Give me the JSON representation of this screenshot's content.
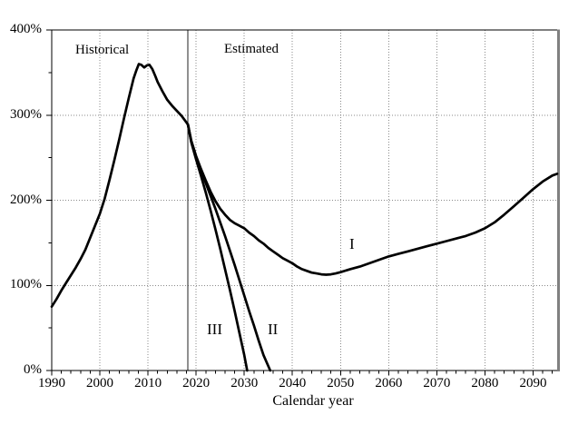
{
  "labels": {
    "historical": "Historical",
    "estimated": "Estimated",
    "series_i": "I",
    "series_ii": "II",
    "series_iii": "III",
    "x_axis_title": "Calendar year"
  },
  "chart_data": {
    "type": "line",
    "title": "",
    "xlabel": "Calendar year",
    "ylabel": "",
    "x_range": [
      1990,
      2095
    ],
    "y_range": [
      0,
      400
    ],
    "x_major_ticks": [
      1990,
      2000,
      2010,
      2020,
      2030,
      2040,
      2050,
      2060,
      2070,
      2080,
      2090
    ],
    "x_tick_labels": [
      "1990",
      "2000",
      "2010",
      "2020",
      "2030",
      "2040",
      "2050",
      "2060",
      "2070",
      "2080",
      "2090"
    ],
    "x_minor_step": 2,
    "y_major_ticks": [
      0,
      100,
      200,
      300,
      400
    ],
    "y_tick_labels": [
      "0%",
      "100%",
      "200%",
      "300%",
      "400%"
    ],
    "y_minor_step": 50,
    "x_grid": [
      2000,
      2010,
      2020,
      2030,
      2040,
      2050,
      2060,
      2070,
      2080,
      2090
    ],
    "y_grid": [
      100,
      200,
      300
    ],
    "grid_style": "dotted",
    "legend_position": "none",
    "divider_year": 2018.3,
    "annotations": {
      "left_of_divider": "Historical",
      "right_of_divider": "Estimated"
    },
    "colors": {
      "curve": "#000000",
      "grid": "#8a8a8a",
      "divider": "#222222",
      "frame": "#000000",
      "frame_right_shadow": "#808080"
    },
    "series": [
      {
        "name": "historical",
        "label": "",
        "points": [
          [
            1990,
            75
          ],
          [
            1991,
            84
          ],
          [
            1992,
            94
          ],
          [
            1993,
            103
          ],
          [
            1994,
            112
          ],
          [
            1995,
            121
          ],
          [
            1996,
            131
          ],
          [
            1997,
            142
          ],
          [
            1998,
            156
          ],
          [
            1999,
            170
          ],
          [
            2000,
            184
          ],
          [
            2001,
            202
          ],
          [
            2002,
            224
          ],
          [
            2003,
            247
          ],
          [
            2004,
            271
          ],
          [
            2005,
            296
          ],
          [
            2006,
            320
          ],
          [
            2007,
            343
          ],
          [
            2007.6,
            353
          ],
          [
            2008.1,
            360
          ],
          [
            2008.6,
            359
          ],
          [
            2009.2,
            356
          ],
          [
            2009.8,
            358.5
          ],
          [
            2010.3,
            359
          ],
          [
            2010.9,
            354
          ],
          [
            2011.5,
            346
          ],
          [
            2012,
            339
          ],
          [
            2013,
            328
          ],
          [
            2014,
            318
          ],
          [
            2015,
            311
          ],
          [
            2016,
            305
          ],
          [
            2017,
            299
          ],
          [
            2018.3,
            289
          ]
        ]
      },
      {
        "name": "alternative-I",
        "label": "I",
        "points": [
          [
            2018.3,
            289
          ],
          [
            2019,
            270
          ],
          [
            2020,
            252
          ],
          [
            2021,
            237
          ],
          [
            2022,
            223
          ],
          [
            2023,
            210
          ],
          [
            2024,
            199
          ],
          [
            2025,
            190
          ],
          [
            2026,
            183
          ],
          [
            2027,
            177
          ],
          [
            2028,
            173
          ],
          [
            2029,
            170
          ],
          [
            2030,
            167
          ],
          [
            2031,
            162
          ],
          [
            2032,
            158
          ],
          [
            2033,
            153
          ],
          [
            2034,
            149
          ],
          [
            2035,
            144
          ],
          [
            2036,
            140
          ],
          [
            2037,
            136
          ],
          [
            2038,
            132
          ],
          [
            2039,
            129
          ],
          [
            2040,
            126
          ],
          [
            2041,
            122
          ],
          [
            2042,
            119
          ],
          [
            2043,
            117
          ],
          [
            2044,
            115
          ],
          [
            2045,
            114
          ],
          [
            2046,
            113
          ],
          [
            2047,
            112.5
          ],
          [
            2048,
            113
          ],
          [
            2049,
            114
          ],
          [
            2050,
            115.5
          ],
          [
            2052,
            119
          ],
          [
            2054,
            122
          ],
          [
            2056,
            126
          ],
          [
            2058,
            130
          ],
          [
            2060,
            134
          ],
          [
            2062,
            137
          ],
          [
            2064,
            140
          ],
          [
            2066,
            143
          ],
          [
            2068,
            146
          ],
          [
            2070,
            149
          ],
          [
            2072,
            152
          ],
          [
            2074,
            155
          ],
          [
            2076,
            158
          ],
          [
            2078,
            162
          ],
          [
            2080,
            167
          ],
          [
            2082,
            174
          ],
          [
            2084,
            183
          ],
          [
            2086,
            193
          ],
          [
            2088,
            203
          ],
          [
            2090,
            213
          ],
          [
            2092,
            222
          ],
          [
            2094,
            229
          ],
          [
            2095,
            231
          ]
        ]
      },
      {
        "name": "alternative-II",
        "label": "II",
        "points": [
          [
            2018.3,
            289
          ],
          [
            2019,
            269
          ],
          [
            2020,
            250
          ],
          [
            2021,
            235
          ],
          [
            2022,
            220
          ],
          [
            2023,
            205
          ],
          [
            2024,
            190
          ],
          [
            2025,
            174
          ],
          [
            2026,
            158
          ],
          [
            2027,
            141
          ],
          [
            2028,
            124
          ],
          [
            2029,
            106
          ],
          [
            2030,
            88
          ],
          [
            2031,
            70
          ],
          [
            2032,
            53
          ],
          [
            2033,
            35
          ],
          [
            2034,
            18
          ],
          [
            2035.4,
            0
          ]
        ]
      },
      {
        "name": "alternative-III",
        "label": "III",
        "points": [
          [
            2018.3,
            289
          ],
          [
            2019,
            268
          ],
          [
            2020,
            248
          ],
          [
            2021,
            229
          ],
          [
            2022,
            209
          ],
          [
            2023,
            188
          ],
          [
            2024,
            166
          ],
          [
            2025,
            143
          ],
          [
            2026,
            119
          ],
          [
            2027,
            95
          ],
          [
            2028,
            70
          ],
          [
            2029,
            44
          ],
          [
            2030,
            18
          ],
          [
            2030.6,
            0
          ]
        ]
      }
    ]
  }
}
